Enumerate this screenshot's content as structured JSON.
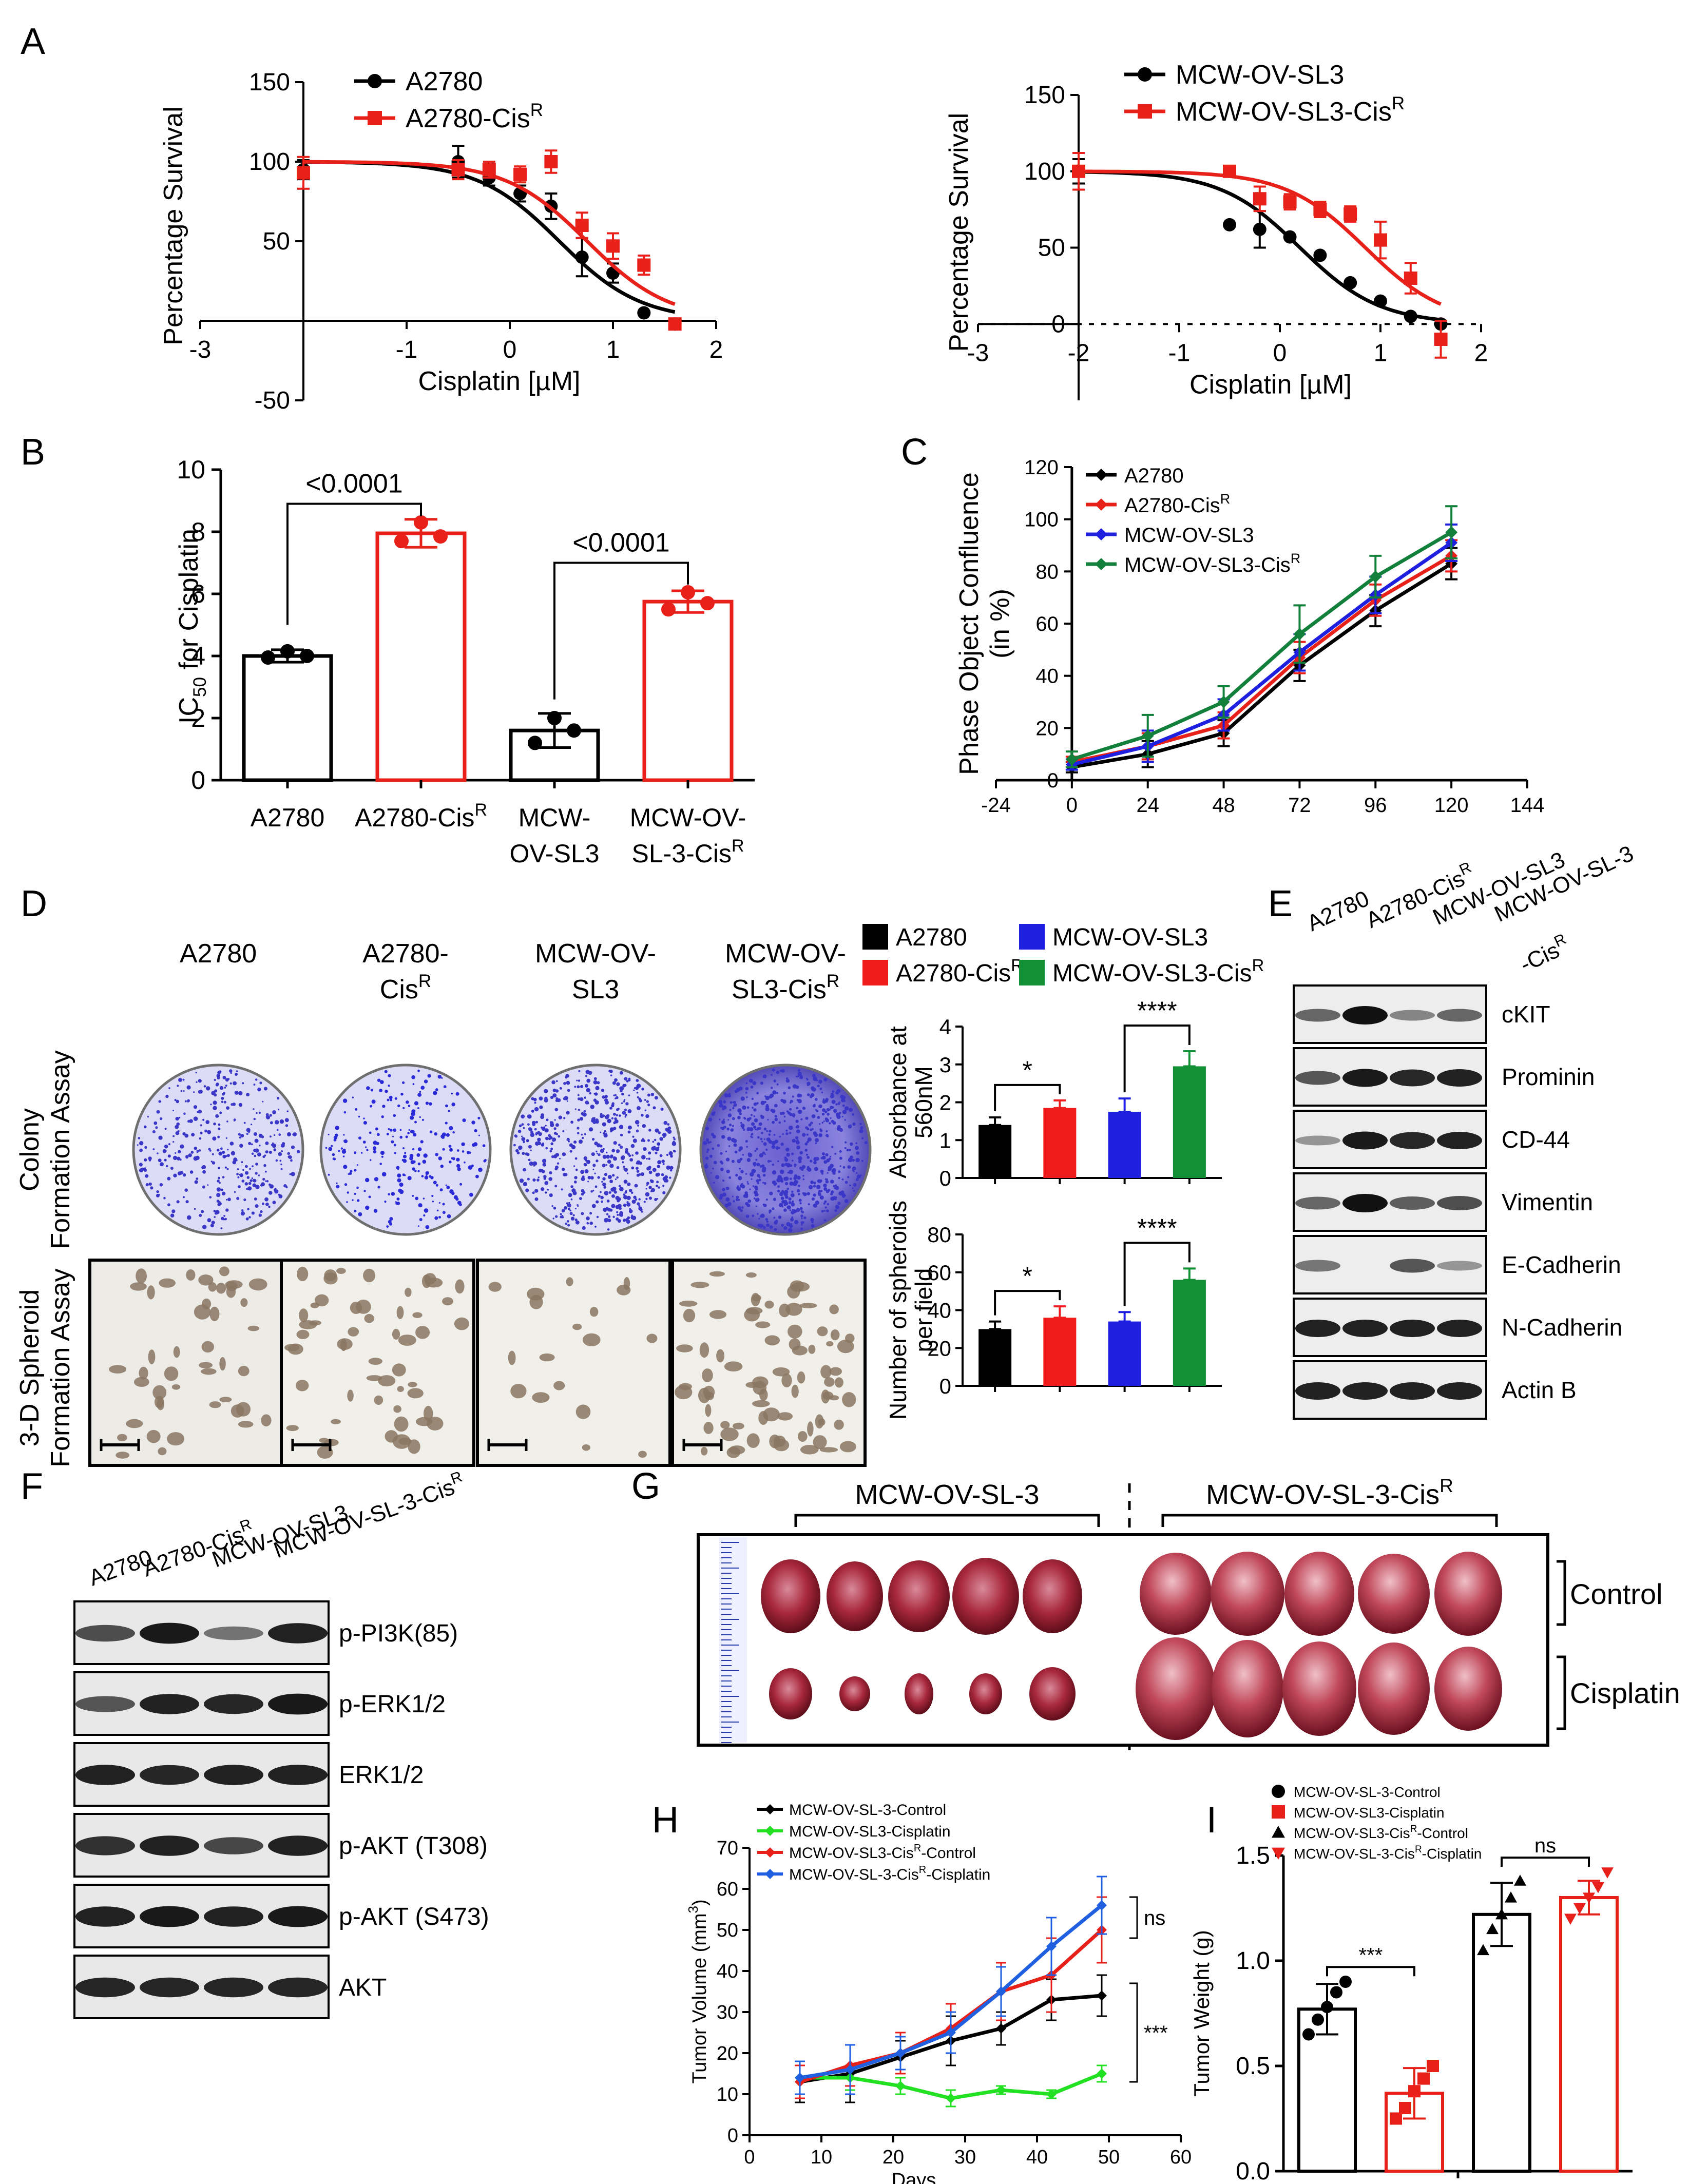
{
  "panels": {
    "A": "A",
    "B": "B",
    "C": "C",
    "D": "D",
    "E": "E",
    "F": "F",
    "G": "G",
    "H": "H",
    "I": "I"
  },
  "chart_data": [
    {
      "id": "A-left",
      "type": "scatter",
      "title": "",
      "xlabel": "Cisplatin [µM]",
      "ylabel": "Percentage Survival",
      "xlim": [
        -3,
        2
      ],
      "ylim": [
        -50,
        150
      ],
      "xticks": [
        "-3",
        "-1",
        "0",
        "1",
        "2"
      ],
      "yticks": [
        "-50",
        "50",
        "100",
        "150"
      ],
      "series": [
        {
          "name": "A2780",
          "sup": "",
          "color": "#000000",
          "points": [
            [
              -2,
              95
            ],
            [
              -0.5,
              100
            ],
            [
              -0.2,
              90
            ],
            [
              0.1,
              80
            ],
            [
              0.4,
              72
            ],
            [
              0.7,
              40
            ],
            [
              1.0,
              30
            ],
            [
              1.3,
              5
            ],
            [
              1.6,
              -2
            ]
          ],
          "err": [
            6,
            10,
            5,
            5,
            8,
            12,
            6,
            0,
            0
          ],
          "logec50": 0.48
        },
        {
          "name": "A2780-Cis",
          "sup": "R",
          "color": "#e8201a",
          "points": [
            [
              -2,
              93
            ],
            [
              -0.5,
              95
            ],
            [
              -0.2,
              95
            ],
            [
              0.1,
              92
            ],
            [
              0.4,
              100
            ],
            [
              0.7,
              60
            ],
            [
              1.0,
              47
            ],
            [
              1.3,
              35
            ],
            [
              1.6,
              -2
            ]
          ],
          "err": [
            10,
            6,
            5,
            5,
            7,
            8,
            8,
            6,
            0
          ],
          "logec50": 0.75
        }
      ]
    },
    {
      "id": "A-right",
      "type": "scatter",
      "title": "",
      "xlabel": "Cisplatin [µM]",
      "ylabel": "Percentage Survival",
      "xlim": [
        -3,
        2
      ],
      "ylim": [
        -50,
        150
      ],
      "xticks": [
        "-3",
        "-2",
        "-1",
        "0",
        "1",
        "2"
      ],
      "yticks": [
        "0",
        "50",
        "100",
        "150"
      ],
      "series": [
        {
          "name": "MCW-OV-SL3",
          "sup": "",
          "color": "#000000",
          "points": [
            [
              -2,
              100
            ],
            [
              -0.5,
              65
            ],
            [
              -0.2,
              62
            ],
            [
              0.1,
              57
            ],
            [
              0.4,
              45
            ],
            [
              0.7,
              27
            ],
            [
              1.0,
              15
            ],
            [
              1.3,
              5
            ],
            [
              1.6,
              0
            ]
          ],
          "err": [
            8,
            0,
            12,
            0,
            0,
            0,
            0,
            0,
            0
          ],
          "logec50": 0.2
        },
        {
          "name": "MCW-OV-SL3-Cis",
          "sup": "R",
          "color": "#e8201a",
          "points": [
            [
              -2,
              100
            ],
            [
              -0.5,
              100
            ],
            [
              -0.2,
              82
            ],
            [
              0.1,
              80
            ],
            [
              0.4,
              75
            ],
            [
              0.7,
              72
            ],
            [
              1.0,
              55
            ],
            [
              1.3,
              30
            ],
            [
              1.6,
              -10
            ]
          ],
          "err": [
            12,
            0,
            8,
            5,
            5,
            5,
            12,
            10,
            12
          ],
          "logec50": 0.85
        }
      ]
    },
    {
      "id": "B",
      "type": "bar",
      "ylabel": "IC",
      "ylabel_sub": "50",
      "ylabel_rest": " for Cisplatin",
      "ylim": [
        0,
        10
      ],
      "yticks": [
        "0",
        "2",
        "4",
        "6",
        "8",
        "10"
      ],
      "categories": [
        {
          "line1": "A2780",
          "line2": "",
          "sup": ""
        },
        {
          "line1": "A2780-Cis",
          "line2": "",
          "sup": "R"
        },
        {
          "line1": "MCW-",
          "line2": "OV-SL3",
          "sup": ""
        },
        {
          "line1": "MCW-OV-",
          "line2": "SL-3-Cis",
          "sup": "R"
        }
      ],
      "values": [
        4.0,
        7.95,
        1.6,
        5.75
      ],
      "err": [
        0.2,
        0.45,
        0.55,
        0.35
      ],
      "points": [
        [
          3.95,
          4.15,
          4.0
        ],
        [
          7.7,
          8.3,
          7.85
        ],
        [
          1.2,
          2.0,
          1.6
        ],
        [
          5.5,
          6.05,
          5.7
        ]
      ],
      "colors": [
        "#000000",
        "#e8201a",
        "#000000",
        "#e8201a"
      ],
      "brackets": [
        "<0.0001",
        "<0.0001"
      ]
    },
    {
      "id": "C",
      "type": "line",
      "ylabel": "Phase Object Confluence",
      "ylabel2": "(in %)",
      "xlim": [
        -24,
        144
      ],
      "ylim": [
        0,
        120
      ],
      "xticks": [
        "-24",
        "0",
        "24",
        "48",
        "72",
        "96",
        "120",
        "144"
      ],
      "yticks": [
        "0",
        "20",
        "40",
        "60",
        "80",
        "100",
        "120"
      ],
      "x": [
        0,
        24,
        48,
        72,
        96,
        120
      ],
      "series": [
        {
          "name": "A2780",
          "sup": "",
          "color": "#000000",
          "values": [
            5,
            10,
            18,
            44,
            65,
            83
          ],
          "err": [
            2,
            5,
            5,
            6,
            6,
            6
          ]
        },
        {
          "name": "A2780-Cis",
          "sup": "R",
          "color": "#e8201a",
          "values": [
            7,
            13,
            21,
            47,
            69,
            86
          ],
          "err": [
            2,
            5,
            5,
            6,
            6,
            6
          ]
        },
        {
          "name": "MCW-OV-SL3",
          "sup": "",
          "color": "#1f1fe0",
          "values": [
            6,
            13,
            25,
            49,
            71,
            91
          ],
          "err": [
            2,
            6,
            6,
            7,
            7,
            7
          ]
        },
        {
          "name": "MCW-OV-SL3-Cis",
          "sup": "R",
          "color": "#12803a",
          "values": [
            8,
            17,
            30,
            56,
            78,
            95
          ],
          "err": [
            3,
            8,
            6,
            11,
            8,
            10
          ]
        }
      ]
    },
    {
      "id": "D-absorbance",
      "type": "bar",
      "ylabel": "Absorbance at",
      "ylabel2": "560nM",
      "ylim": [
        0,
        4
      ],
      "yticks": [
        "0",
        "1",
        "2",
        "3",
        "4"
      ],
      "categories": [
        "A2780",
        "A2780-Cis",
        "MCW-OV-SL3",
        "MCW-OV-SL3-Cis"
      ],
      "values": [
        1.4,
        1.85,
        1.75,
        2.95
      ],
      "err": [
        0.2,
        0.2,
        0.35,
        0.4
      ],
      "colors": [
        "#000000",
        "#ee1c1c",
        "#1f1fe0",
        "#129036"
      ],
      "sig": [
        "*",
        "****"
      ]
    },
    {
      "id": "D-spheroids",
      "type": "bar",
      "ylabel": "Number of spheroids",
      "ylabel2": "per field",
      "ylim": [
        0,
        80
      ],
      "yticks": [
        "0",
        "20",
        "40",
        "60",
        "80"
      ],
      "categories": [
        "A2780",
        "A2780-Cis",
        "MCW-OV-SL3",
        "MCW-OV-SL3-Cis"
      ],
      "values": [
        30,
        36,
        34,
        56
      ],
      "err": [
        4,
        6,
        5,
        6
      ],
      "colors": [
        "#000000",
        "#ee1c1c",
        "#1f1fe0",
        "#129036"
      ],
      "sig": [
        "*",
        "****"
      ]
    },
    {
      "id": "H",
      "type": "line",
      "xlabel": "Days",
      "ylabel": "Tumor Volume (mm",
      "ylabel_sup": "3",
      "ylabel_end": ")",
      "xlim": [
        0,
        60
      ],
      "ylim": [
        0,
        70
      ],
      "xticks": [
        "0",
        "10",
        "20",
        "30",
        "40",
        "50",
        "60"
      ],
      "yticks": [
        "0",
        "10",
        "20",
        "30",
        "40",
        "50",
        "60",
        "70"
      ],
      "x": [
        7,
        14,
        21,
        28,
        35,
        42,
        49
      ],
      "series": [
        {
          "name": "MCW-OV-SL-3-Control",
          "sup": "",
          "color": "#000000",
          "values": [
            13,
            15,
            19,
            23,
            26,
            33,
            34
          ],
          "err": [
            5,
            7,
            4,
            6,
            4,
            5,
            5
          ]
        },
        {
          "name": "MCW-OV-SL3-Cisplatin",
          "sup": "",
          "color": "#22e022",
          "values": [
            14,
            14,
            12,
            9,
            11,
            10,
            15
          ],
          "err": [
            4,
            3,
            2,
            2,
            1,
            1,
            2
          ]
        },
        {
          "name": "MCW-OV-SL3-Cis",
          "sup": "R",
          "name_end": "-Control",
          "color": "#e8201a",
          "values": [
            13,
            17,
            20,
            26,
            35,
            39,
            50
          ],
          "err": [
            4,
            5,
            5,
            6,
            7,
            9,
            8
          ]
        },
        {
          "name": "MCW-OV-SL-3-Cis",
          "sup": "R",
          "name_end": "-Cisplatin",
          "color": "#1f5fe0",
          "values": [
            14,
            16,
            20,
            25,
            35,
            46,
            56
          ],
          "err": [
            4,
            6,
            4,
            5,
            6,
            7,
            7
          ]
        }
      ],
      "sig": [
        "ns",
        "***"
      ]
    },
    {
      "id": "I",
      "type": "bar",
      "ylabel": "Tumor Weight (g)",
      "ylim": [
        0,
        1.5
      ],
      "yticks": [
        "0.0",
        "0.5",
        "1.0",
        "1.5"
      ],
      "categories": [
        "MCW-OV-SL-3-Control",
        "MCW-OV-SL3-Cisplatin",
        "MCW-OV-SL3-Cis",
        "MCW-OV-SL-3-Cis"
      ],
      "legend": [
        {
          "name": "MCW-OV-SL-3-Control",
          "sup": "",
          "end": "",
          "marker": "circle",
          "color": "#000000"
        },
        {
          "name": "MCW-OV-SL3-Cisplatin",
          "sup": "",
          "end": "",
          "marker": "square",
          "color": "#e8201a"
        },
        {
          "name": "MCW-OV-SL3-Cis",
          "sup": "R",
          "end": "-Control",
          "marker": "triangle",
          "color": "#000000"
        },
        {
          "name": "MCW-OV-SL-3-Cis",
          "sup": "R",
          "end": "-Cisplatin",
          "marker": "tri-down",
          "color": "#e8201a"
        }
      ],
      "values": [
        0.77,
        0.37,
        1.22,
        1.3
      ],
      "err": [
        0.12,
        0.12,
        0.15,
        0.08
      ],
      "points": [
        [
          0.65,
          0.72,
          0.78,
          0.85,
          0.9
        ],
        [
          0.25,
          0.3,
          0.38,
          0.44,
          0.5
        ],
        [
          1.05,
          1.15,
          1.22,
          1.3,
          1.38
        ],
        [
          1.2,
          1.25,
          1.3,
          1.35,
          1.42
        ]
      ],
      "colors": [
        "#000000",
        "#e8201a",
        "#000000",
        "#e8201a"
      ],
      "sig": [
        "***",
        "ns"
      ]
    }
  ],
  "panelD": {
    "col_labels": [
      {
        "l1": "A2780",
        "l2": "",
        "sup": ""
      },
      {
        "l1": "A2780-",
        "l2": "Cis",
        "sup": "R"
      },
      {
        "l1": "MCW-OV-",
        "l2": "SL3",
        "sup": ""
      },
      {
        "l1": "MCW-OV-",
        "l2": "SL3-Cis",
        "sup": "R"
      }
    ],
    "row1_label": [
      "Colony",
      "Formation Assay"
    ],
    "row2_label": [
      "3-D Spheroid",
      "Formation Assay"
    ],
    "legend": [
      {
        "name": "A2780",
        "sup": "",
        "color": "#000000"
      },
      {
        "name": "MCW-OV-SL3",
        "sup": "",
        "color": "#1f1fe0"
      },
      {
        "name": "A2780-Cis",
        "sup": "R",
        "color": "#ee1c1c"
      },
      {
        "name": "MCW-OV-SL3-Cis",
        "sup": "R",
        "color": "#129036"
      }
    ]
  },
  "panelE": {
    "lanes": [
      {
        "t": "A2780",
        "sup": ""
      },
      {
        "t": "A2780-Cis",
        "sup": "R"
      },
      {
        "t": "MCW-OV-SL3",
        "sup": ""
      },
      {
        "t": "MCW-OV-SL-3",
        "sup": ""
      }
    ],
    "lane4_second": "-Cis",
    "lane4_sup": "R",
    "proteins": [
      "cKIT",
      "Prominin",
      "CD-44",
      "Vimentin",
      "E-Cadherin",
      "N-Cadherin",
      "Actin B"
    ]
  },
  "panelF": {
    "lanes": [
      {
        "t": "A2780",
        "sup": ""
      },
      {
        "t": "A2780-Cis",
        "sup": "R"
      },
      {
        "t": "MCW-OV-SL3",
        "sup": ""
      },
      {
        "t": "MCW-OV-SL-3-Cis",
        "sup": "R"
      }
    ],
    "proteins": [
      "p-PI3K(85)",
      "p-ERK1/2",
      "ERK1/2",
      "p-AKT (T308)",
      "p-AKT (S473)",
      "AKT"
    ]
  },
  "panelG": {
    "group1": "MCW-OV-SL-3",
    "group2": "MCW-OV-SL-3-Cis",
    "group2_sup": "R",
    "row_labels": [
      "Control",
      "Cisplatin"
    ]
  }
}
